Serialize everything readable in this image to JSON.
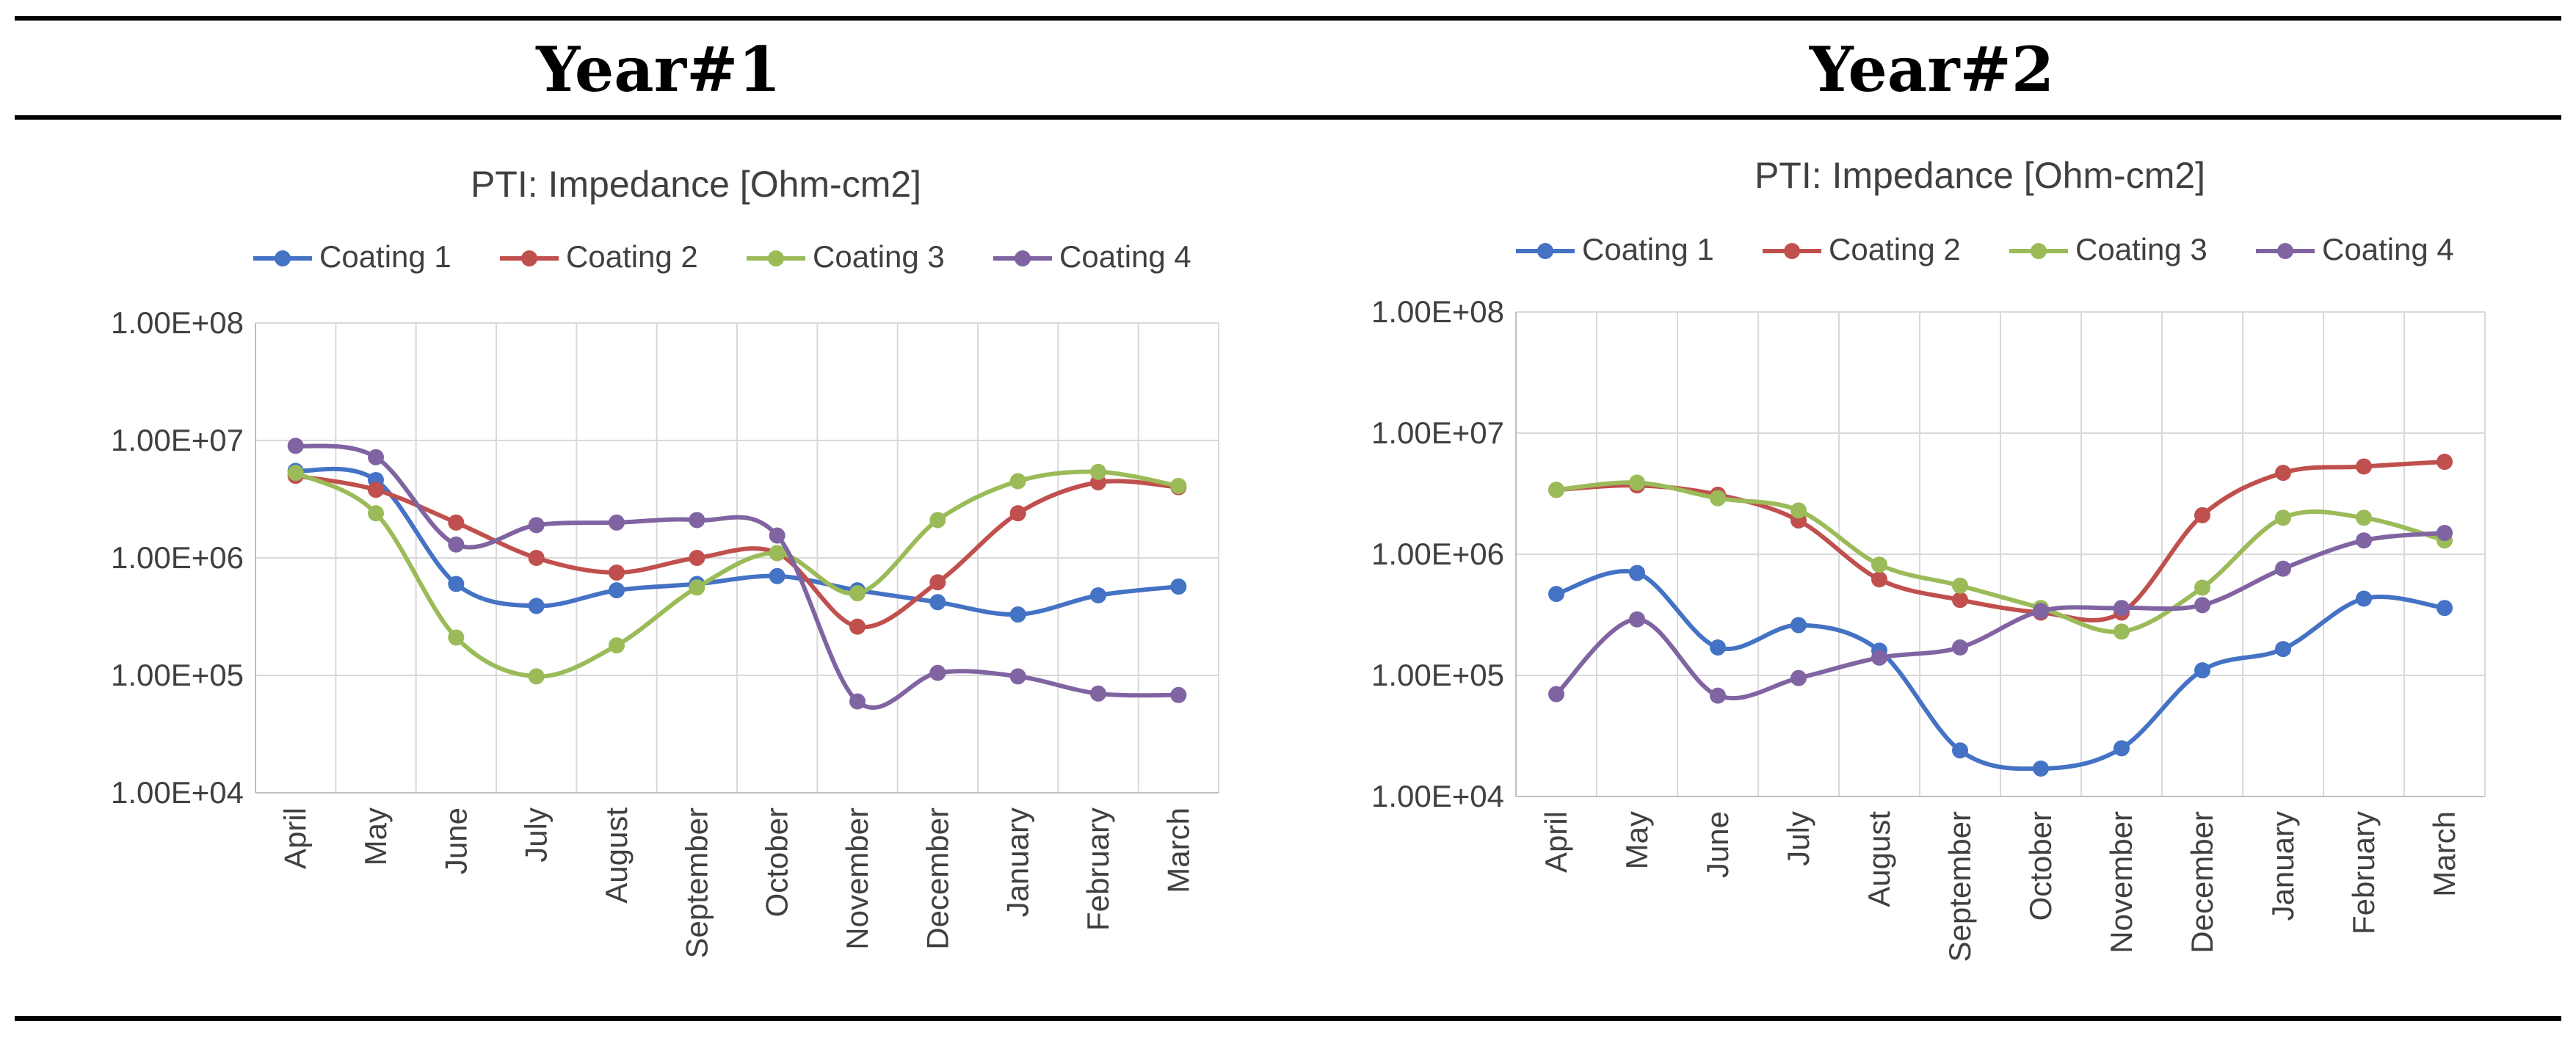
{
  "headers": {
    "left": "Year#1",
    "right": "Year#2"
  },
  "chart_data": [
    {
      "type": "line",
      "title": "PTI: Impedance [Ohm-cm2]",
      "yscale": "log",
      "ylim": [
        10000,
        100000000
      ],
      "ytick_labels": [
        "1.00E+04",
        "1.00E+05",
        "1.00E+06",
        "1.00E+07",
        "1.00E+08"
      ],
      "categories": [
        "April",
        "May",
        "June",
        "July",
        "August",
        "September",
        "October",
        "November",
        "December",
        "January",
        "February",
        "March"
      ],
      "legend_position": "top",
      "grid": true,
      "series": [
        {
          "name": "Coating 1",
          "color": "#4472C4",
          "values": [
            5500000,
            4600000,
            600000,
            390000,
            530000,
            600000,
            700000,
            530000,
            420000,
            330000,
            480000,
            570000
          ]
        },
        {
          "name": "Coating 2",
          "color": "#C0504D",
          "values": [
            5000000,
            3800000,
            2000000,
            1000000,
            750000,
            1000000,
            1100000,
            260000,
            620000,
            2400000,
            4400000,
            4000000
          ]
        },
        {
          "name": "Coating 3",
          "color": "#9BBB59",
          "values": [
            5300000,
            2400000,
            210000,
            98000,
            180000,
            560000,
            1100000,
            500000,
            2100000,
            4500000,
            5400000,
            4100000
          ]
        },
        {
          "name": "Coating 4",
          "color": "#8064A2",
          "values": [
            9000000,
            7200000,
            1300000,
            1900000,
            2000000,
            2100000,
            1550000,
            60000,
            105000,
            98000,
            70000,
            68000
          ]
        }
      ]
    },
    {
      "type": "line",
      "title": "PTI: Impedance [Ohm-cm2]",
      "yscale": "log",
      "ylim": [
        10000,
        100000000
      ],
      "ytick_labels": [
        "1.00E+04",
        "1.00E+05",
        "1.00E+06",
        "1.00E+07",
        "1.00E+08"
      ],
      "categories": [
        "April",
        "May",
        "June",
        "July",
        "August",
        "September",
        "October",
        "November",
        "December",
        "January",
        "February",
        "March"
      ],
      "legend_position": "top",
      "grid": true,
      "series": [
        {
          "name": "Coating 1",
          "color": "#4472C4",
          "values": [
            470000,
            700000,
            170000,
            260000,
            160000,
            24000,
            17000,
            25000,
            110000,
            165000,
            430000,
            360000
          ]
        },
        {
          "name": "Coating 2",
          "color": "#C0504D",
          "values": [
            3400000,
            3700000,
            3100000,
            1900000,
            620000,
            420000,
            330000,
            330000,
            2100000,
            4700000,
            5300000,
            5800000
          ]
        },
        {
          "name": "Coating 3",
          "color": "#9BBB59",
          "values": [
            3400000,
            3900000,
            2900000,
            2300000,
            820000,
            550000,
            360000,
            230000,
            530000,
            2000000,
            2000000,
            1300000
          ]
        },
        {
          "name": "Coating 4",
          "color": "#8064A2",
          "values": [
            70000,
            290000,
            68000,
            95000,
            140000,
            170000,
            340000,
            360000,
            380000,
            760000,
            1300000,
            1500000
          ]
        }
      ]
    }
  ]
}
